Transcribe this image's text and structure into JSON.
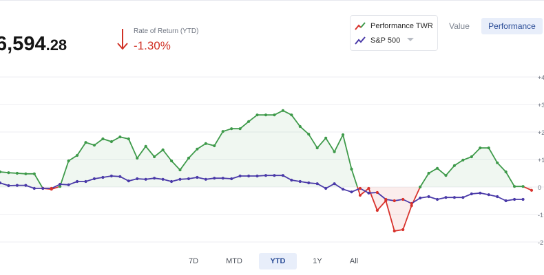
{
  "balance": {
    "main": "6,594",
    "cents": ".28"
  },
  "return": {
    "label": "Rate of Return (YTD)",
    "value": "-1.30%",
    "color": "#d03226"
  },
  "legend": {
    "series": [
      {
        "name": "Performance TWR",
        "icon": "line-chart-icon-red-green"
      },
      {
        "name": "S&P 500",
        "icon": "line-chart-icon-purple"
      }
    ]
  },
  "view_toggle": {
    "value_label": "Value",
    "performance_label": "Performance",
    "selected": "Performance"
  },
  "ranges": [
    {
      "label": "7D",
      "active": false
    },
    {
      "label": "MTD",
      "active": false
    },
    {
      "label": "YTD",
      "active": true
    },
    {
      "label": "1Y",
      "active": false
    },
    {
      "label": "All",
      "active": false
    }
  ],
  "colors": {
    "positive": "#3e9a4a",
    "negative": "#d8322c",
    "benchmark": "#4a3aa8",
    "accent": "#2a4c96"
  },
  "chart_data": {
    "type": "line",
    "y_ticks": [
      "+4",
      "+3",
      "+2",
      "+1",
      "0",
      "-1",
      "-2"
    ],
    "ylim": [
      -2,
      4
    ],
    "grid": true,
    "series": [
      {
        "name": "Performance TWR",
        "values": [
          0.55,
          0.52,
          0.5,
          0.48,
          0.48,
          -0.05,
          -0.08,
          0.02,
          0.95,
          1.15,
          1.62,
          1.52,
          1.75,
          1.65,
          1.82,
          1.75,
          1.05,
          1.48,
          1.1,
          1.35,
          0.95,
          0.62,
          1.05,
          1.38,
          1.58,
          1.5,
          2.02,
          2.12,
          2.12,
          2.38,
          2.62,
          2.62,
          2.62,
          2.78,
          2.62,
          2.2,
          1.92,
          1.42,
          1.78,
          1.28,
          1.9,
          0.65,
          -0.3,
          -0.05,
          -0.85,
          -0.5,
          -1.6,
          -1.55,
          -0.68,
          0.0,
          0.5,
          0.68,
          0.42,
          0.78,
          0.98,
          1.1,
          1.42,
          1.42,
          0.88,
          0.55,
          0.02,
          0.02,
          -0.12
        ]
      },
      {
        "name": "S&P 500",
        "values": [
          0.15,
          0.05,
          0.06,
          0.06,
          -0.05,
          -0.05,
          -0.05,
          0.1,
          0.08,
          0.2,
          0.2,
          0.3,
          0.35,
          0.4,
          0.38,
          0.22,
          0.3,
          0.28,
          0.32,
          0.28,
          0.2,
          0.28,
          0.3,
          0.35,
          0.28,
          0.32,
          0.32,
          0.3,
          0.4,
          0.4,
          0.4,
          0.42,
          0.42,
          0.42,
          0.25,
          0.2,
          0.15,
          0.12,
          -0.05,
          0.12,
          -0.08,
          -0.18,
          -0.05,
          -0.22,
          -0.2,
          -0.45,
          -0.5,
          -0.45,
          -0.6,
          -0.4,
          -0.35,
          -0.45,
          -0.38,
          -0.38,
          -0.38,
          -0.25,
          -0.22,
          -0.28,
          -0.35,
          -0.5,
          -0.45,
          -0.45
        ]
      }
    ]
  }
}
